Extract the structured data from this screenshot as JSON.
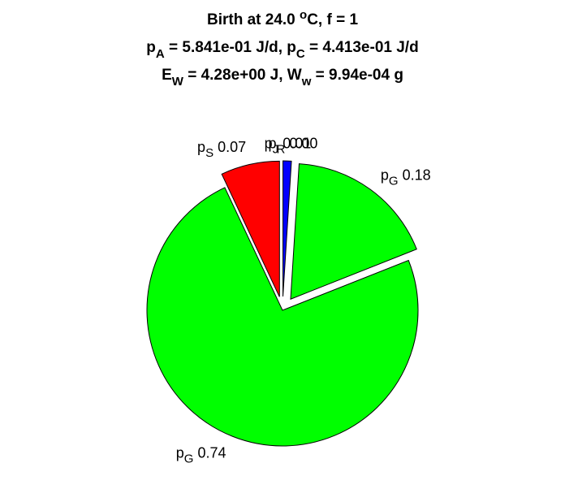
{
  "chart_data": {
    "type": "pie",
    "title_lines": [
      [
        {
          "text": "Birth at 24.0 "
        },
        {
          "text": "o",
          "pos": "sup"
        },
        {
          "text": "C, f = 1"
        }
      ],
      [
        {
          "text": "p"
        },
        {
          "text": "A",
          "pos": "sub"
        },
        {
          "text": " = 5.841e-01 J/d, p"
        },
        {
          "text": "C",
          "pos": "sub"
        },
        {
          "text": " = 4.413e-01 J/d"
        }
      ],
      [
        {
          "text": "E"
        },
        {
          "text": "W",
          "pos": "sub"
        },
        {
          "text": " = 4.28e+00 J, W"
        },
        {
          "text": "w",
          "pos": "sub"
        },
        {
          "text": " = 9.94e-04 g"
        }
      ]
    ],
    "slices": [
      {
        "symbol": "p",
        "sub": "S"
      },
      {
        "symbol": "p",
        "sub": "G"
      },
      {
        "symbol": "p",
        "sub": "G"
      },
      {
        "symbol": "p",
        "sub": "R"
      },
      {
        "symbol": "p",
        "sub": "J"
      }
    ],
    "values": [
      0.07,
      0.74,
      0.18,
      0,
      0.01
    ],
    "value_labels": [
      "0.07",
      "0.74",
      "0.18",
      "0.00",
      "0.01"
    ],
    "colors": [
      "#ff0000",
      "#00ff00",
      "#00ff00",
      "#ffff00",
      "#0000ff"
    ],
    "explode": [
      true,
      false,
      true,
      true,
      true
    ]
  }
}
